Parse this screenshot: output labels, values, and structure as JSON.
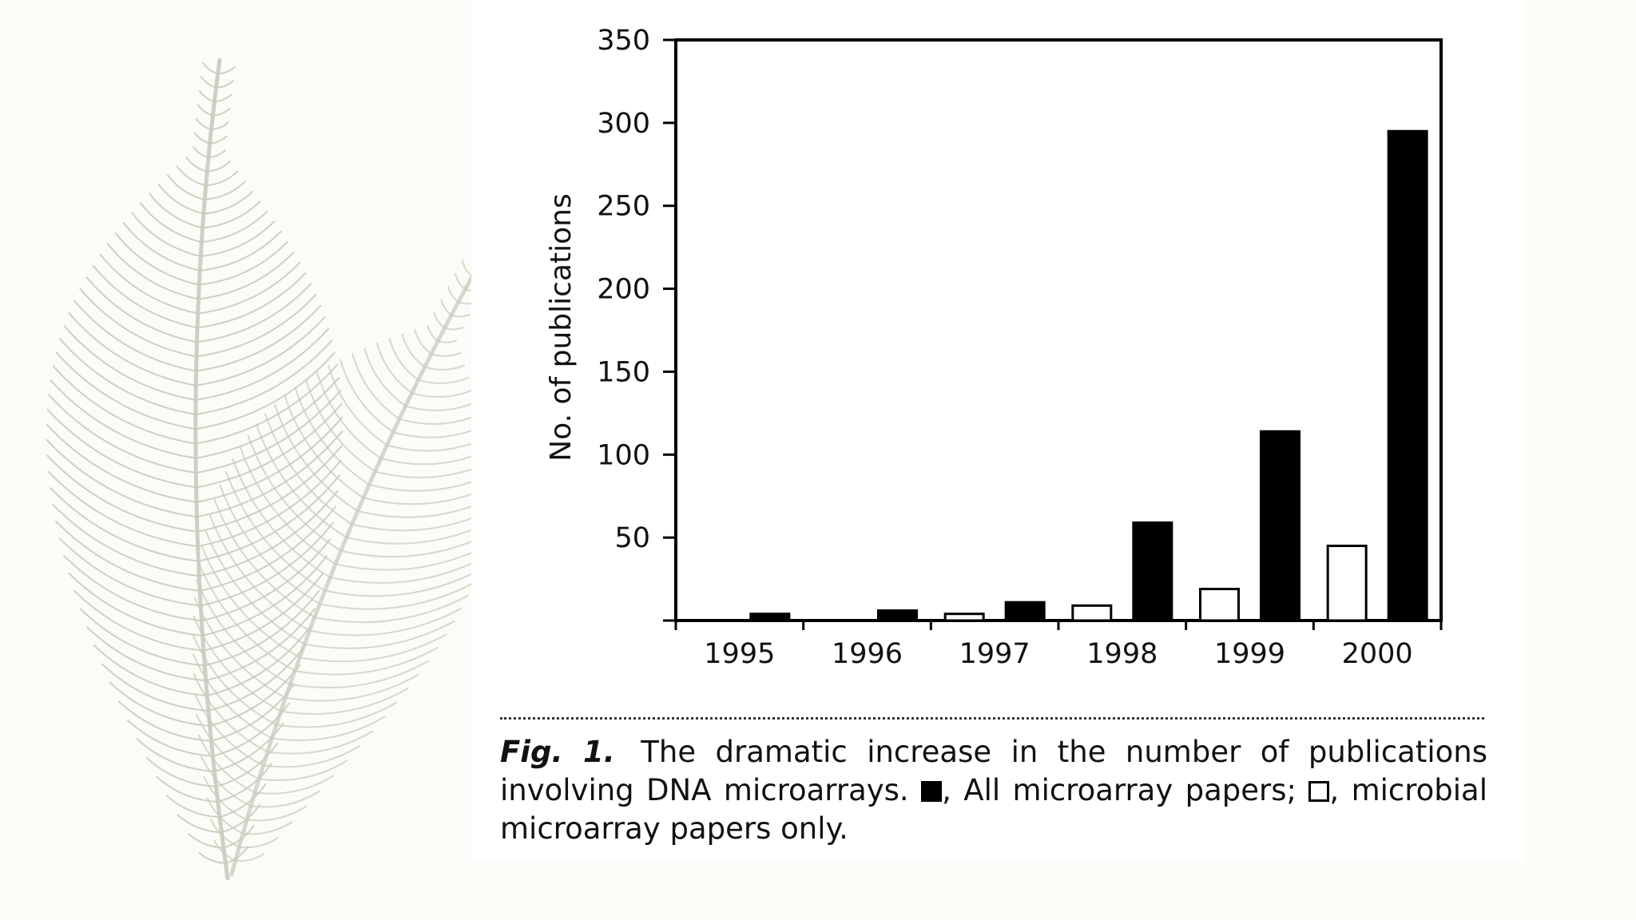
{
  "chart_data": {
    "type": "bar",
    "categories": [
      "1995",
      "1996",
      "1997",
      "1998",
      "1999",
      "2000"
    ],
    "series": [
      {
        "name": "microbial microarray papers only",
        "fill": "#ffffff",
        "stroke": "#000000",
        "values": [
          0,
          0,
          4,
          9,
          19,
          45
        ]
      },
      {
        "name": "All microarray papers",
        "fill": "#000000",
        "stroke": "#000000",
        "values": [
          4,
          6,
          11,
          59,
          114,
          295
        ]
      }
    ],
    "yticks": [
      50,
      100,
      150,
      200,
      250,
      300,
      350
    ],
    "ylim": [
      0,
      350
    ],
    "ylabel": "No. of publications",
    "xlabel": "",
    "grid": false
  },
  "caption": {
    "label": "Fig. 1.",
    "text1": "The dramatic increase in the number of publications involving DNA microarrays.",
    "text2": ", All microarray papers;",
    "text3": ", microbial microarray papers only."
  },
  "colors": {
    "background": "#fcfbf7",
    "panel": "#ffffff",
    "feather": "#c9cbbd",
    "ink": "#000000"
  },
  "decor": {
    "feather": "feather-illustration"
  }
}
